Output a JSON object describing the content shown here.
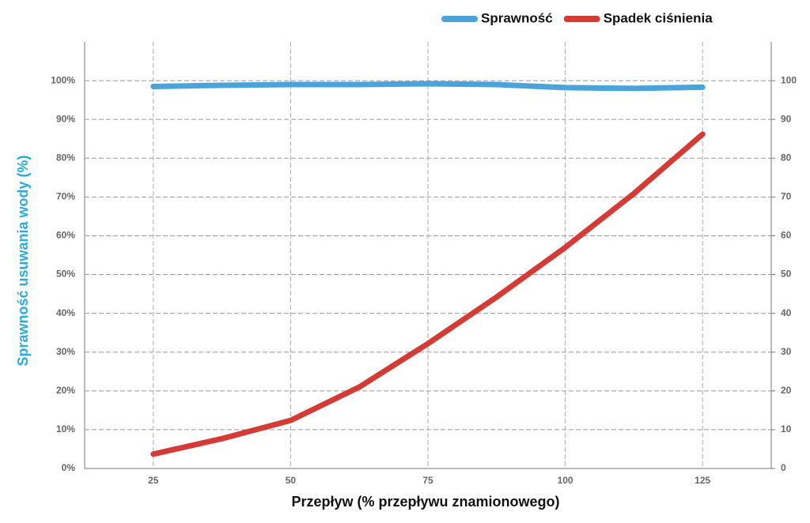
{
  "chart_data": {
    "type": "line",
    "x_label": "Przepływ (% przepływu znamionowego)",
    "y_label": "Sprawność usuwania wody (%)",
    "xlim": [
      12.5,
      137.5
    ],
    "xticks": [
      25,
      50,
      75,
      100,
      125
    ],
    "ylim": [
      0,
      110
    ],
    "yticks": [
      {
        "value": 0,
        "label": "0%"
      },
      {
        "value": 10,
        "label": "10%"
      },
      {
        "value": 20,
        "label": "20%"
      },
      {
        "value": 30,
        "label": "30%"
      },
      {
        "value": 40,
        "label": "40%"
      },
      {
        "value": 50,
        "label": "50%"
      },
      {
        "value": 60,
        "label": "60%"
      },
      {
        "value": 70,
        "label": "70%"
      },
      {
        "value": 80,
        "label": "80%"
      },
      {
        "value": 90,
        "label": "90%"
      },
      {
        "value": 100,
        "label": "100%"
      }
    ],
    "y2lim": [
      0,
      110
    ],
    "y2ticks": [
      0,
      10,
      20,
      30,
      40,
      50,
      60,
      70,
      80,
      90,
      100
    ],
    "grid": true,
    "legend": "top-right",
    "x": [
      25,
      37.5,
      50,
      62.5,
      75,
      87.5,
      100,
      112.5,
      125
    ],
    "series": [
      {
        "name": "Sprawność",
        "color": "#4ba3dc",
        "values": [
          98.5,
          98.8,
          99,
          99,
          99.2,
          99,
          98.2,
          98,
          98.3
        ]
      },
      {
        "name": "Spadek ciśnienia",
        "color": "#d63a35",
        "axis": "y2",
        "values": [
          3.7,
          7.7,
          12.4,
          21,
          32.2,
          44.2,
          57,
          70.9,
          86.2
        ]
      }
    ]
  }
}
